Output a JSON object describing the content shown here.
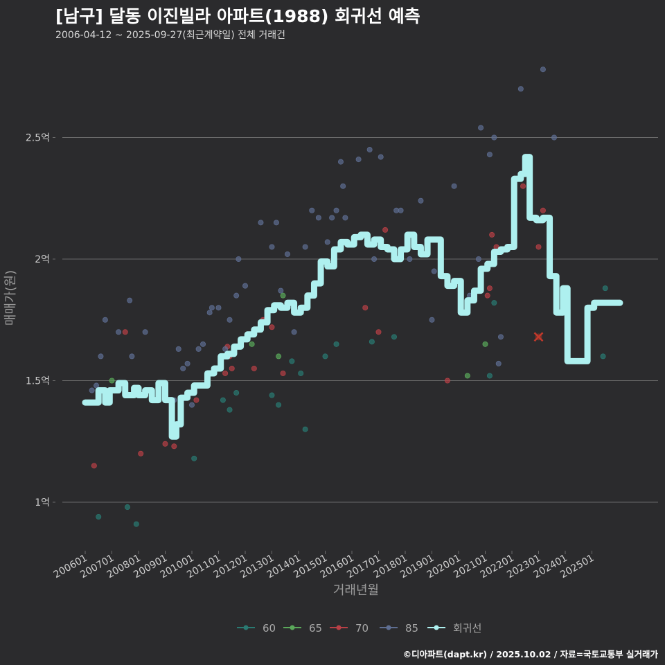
{
  "title": "[남구] 달동 이진빌라 아파트(1988) 회귀선 예측",
  "subtitle": "2006-04-12 ~ 2025-09-27(최근계약일) 전체 거래건",
  "credit": "©디아파트(dapt.kr) / 2025.10.02 / 자료=국토교통부 실거래가",
  "colors": {
    "background": "#2b2b2d",
    "grid": "#6a6a6a",
    "series_60": "#2a7a72",
    "series_65": "#5aa85a",
    "series_70": "#b84046",
    "series_85": "#5e6e92",
    "regression": "#aef0ef",
    "marker_x": "#c0392b"
  },
  "chart_data": {
    "type": "scatter",
    "xlabel": "거래년월",
    "ylabel": "매매가(원)",
    "ylim": [
      0.8,
      2.85
    ],
    "xlim": [
      "2006-01",
      "2026-01"
    ],
    "grid": "horizontal",
    "legend_position": "bottom",
    "y_ticks": [
      {
        "value": 1.0,
        "label": "1억"
      },
      {
        "value": 1.5,
        "label": "1.5억"
      },
      {
        "value": 2.0,
        "label": "2억"
      },
      {
        "value": 2.5,
        "label": "2.5억"
      }
    ],
    "x_ticks": [
      "200601",
      "200701",
      "200801",
      "200901",
      "201001",
      "201101",
      "201201",
      "201301",
      "201401",
      "201501",
      "201601",
      "201701",
      "201801",
      "201901",
      "202001",
      "202101",
      "202201",
      "202301",
      "202401",
      "202501"
    ],
    "legend": [
      "60",
      "65",
      "70",
      "85",
      "회귀선"
    ],
    "series": [
      {
        "name": "60",
        "color_key": "series_60",
        "points": [
          [
            "2006-07",
            0.94
          ],
          [
            "2007-08",
            0.98
          ],
          [
            "2007-12",
            0.91
          ],
          [
            "2010-02",
            1.18
          ],
          [
            "2011-03",
            1.42
          ],
          [
            "2011-06",
            1.38
          ],
          [
            "2011-09",
            1.45
          ],
          [
            "2013-01",
            1.44
          ],
          [
            "2013-04",
            1.4
          ],
          [
            "2013-10",
            1.58
          ],
          [
            "2014-02",
            1.53
          ],
          [
            "2014-04",
            1.3
          ],
          [
            "2015-01",
            1.6
          ],
          [
            "2015-06",
            1.65
          ],
          [
            "2016-10",
            1.66
          ],
          [
            "2017-08",
            1.68
          ],
          [
            "2021-03",
            1.52
          ],
          [
            "2021-05",
            1.82
          ],
          [
            "2025-06",
            1.6
          ],
          [
            "2025-07",
            1.88
          ]
        ]
      },
      {
        "name": "65",
        "color_key": "series_65",
        "points": [
          [
            "2007-01",
            1.5
          ],
          [
            "2012-04",
            1.65
          ],
          [
            "2013-04",
            1.6
          ],
          [
            "2013-06",
            1.85
          ],
          [
            "2020-05",
            1.52
          ],
          [
            "2021-01",
            1.65
          ]
        ]
      },
      {
        "name": "70",
        "color_key": "series_70",
        "points": [
          [
            "2006-05",
            1.15
          ],
          [
            "2007-07",
            1.7
          ],
          [
            "2008-02",
            1.2
          ],
          [
            "2009-01",
            1.24
          ],
          [
            "2009-05",
            1.23
          ],
          [
            "2010-03",
            1.42
          ],
          [
            "2011-02",
            1.55
          ],
          [
            "2011-04",
            1.53
          ],
          [
            "2011-05",
            1.64
          ],
          [
            "2011-06",
            1.6
          ],
          [
            "2011-07",
            1.55
          ],
          [
            "2012-05",
            1.55
          ],
          [
            "2012-09",
            1.75
          ],
          [
            "2013-01",
            1.72
          ],
          [
            "2013-06",
            1.53
          ],
          [
            "2016-07",
            1.8
          ],
          [
            "2017-01",
            1.7
          ],
          [
            "2017-04",
            2.12
          ],
          [
            "2019-08",
            1.5
          ],
          [
            "2021-02",
            1.85
          ],
          [
            "2021-03",
            1.88
          ],
          [
            "2021-04",
            2.1
          ],
          [
            "2021-06",
            2.05
          ],
          [
            "2022-06",
            2.3
          ],
          [
            "2023-01",
            2.05
          ],
          [
            "2023-03",
            2.2
          ]
        ]
      },
      {
        "name": "85",
        "color_key": "series_85",
        "points": [
          [
            "2006-04",
            1.46
          ],
          [
            "2006-06",
            1.48
          ],
          [
            "2006-08",
            1.6
          ],
          [
            "2006-10",
            1.75
          ],
          [
            "2007-04",
            1.7
          ],
          [
            "2007-09",
            1.83
          ],
          [
            "2007-10",
            1.6
          ],
          [
            "2008-04",
            1.7
          ],
          [
            "2009-05",
            1.42
          ],
          [
            "2009-07",
            1.63
          ],
          [
            "2009-09",
            1.55
          ],
          [
            "2009-11",
            1.57
          ],
          [
            "2010-01",
            1.4
          ],
          [
            "2010-04",
            1.63
          ],
          [
            "2010-06",
            1.65
          ],
          [
            "2010-09",
            1.78
          ],
          [
            "2010-10",
            1.8
          ],
          [
            "2011-01",
            1.8
          ],
          [
            "2011-04",
            1.63
          ],
          [
            "2011-06",
            1.75
          ],
          [
            "2011-09",
            1.85
          ],
          [
            "2011-10",
            2.0
          ],
          [
            "2012-01",
            1.89
          ],
          [
            "2012-08",
            2.15
          ],
          [
            "2013-01",
            2.05
          ],
          [
            "2013-03",
            2.15
          ],
          [
            "2013-05",
            1.87
          ],
          [
            "2013-08",
            2.02
          ],
          [
            "2013-11",
            1.7
          ],
          [
            "2014-04",
            2.05
          ],
          [
            "2014-07",
            2.2
          ],
          [
            "2014-10",
            2.17
          ],
          [
            "2015-02",
            2.07
          ],
          [
            "2015-04",
            2.17
          ],
          [
            "2015-06",
            2.2
          ],
          [
            "2015-08",
            2.4
          ],
          [
            "2015-09",
            2.3
          ],
          [
            "2015-10",
            2.17
          ],
          [
            "2016-04",
            2.41
          ],
          [
            "2016-09",
            2.45
          ],
          [
            "2016-11",
            2.0
          ],
          [
            "2017-02",
            2.42
          ],
          [
            "2017-09",
            2.2
          ],
          [
            "2017-11",
            2.2
          ],
          [
            "2018-03",
            2.0
          ],
          [
            "2018-08",
            2.24
          ],
          [
            "2019-01",
            1.75
          ],
          [
            "2019-02",
            1.95
          ],
          [
            "2019-05",
            2.05
          ],
          [
            "2019-11",
            2.3
          ],
          [
            "2020-06",
            1.85
          ],
          [
            "2020-10",
            2.0
          ],
          [
            "2020-11",
            2.54
          ],
          [
            "2021-03",
            2.43
          ],
          [
            "2021-05",
            2.5
          ],
          [
            "2021-07",
            1.57
          ],
          [
            "2021-08",
            1.68
          ],
          [
            "2022-05",
            2.7
          ],
          [
            "2023-03",
            2.78
          ],
          [
            "2023-08",
            2.5
          ]
        ]
      }
    ],
    "regression_line": {
      "name": "회귀선",
      "color_key": "regression",
      "points": [
        [
          "2006-01",
          1.41
        ],
        [
          "2006-05",
          1.41
        ],
        [
          "2006-07",
          1.46
        ],
        [
          "2006-10",
          1.41
        ],
        [
          "2006-12",
          1.46
        ],
        [
          "2007-04",
          1.49
        ],
        [
          "2007-07",
          1.44
        ],
        [
          "2007-11",
          1.47
        ],
        [
          "2008-01",
          1.44
        ],
        [
          "2008-04",
          1.46
        ],
        [
          "2008-07",
          1.42
        ],
        [
          "2008-10",
          1.49
        ],
        [
          "2009-01",
          1.42
        ],
        [
          "2009-04",
          1.27
        ],
        [
          "2009-06",
          1.32
        ],
        [
          "2009-08",
          1.43
        ],
        [
          "2009-11",
          1.45
        ],
        [
          "2010-02",
          1.48
        ],
        [
          "2010-05",
          1.48
        ],
        [
          "2010-08",
          1.53
        ],
        [
          "2010-11",
          1.55
        ],
        [
          "2011-02",
          1.6
        ],
        [
          "2011-05",
          1.61
        ],
        [
          "2011-08",
          1.64
        ],
        [
          "2011-11",
          1.67
        ],
        [
          "2012-02",
          1.69
        ],
        [
          "2012-05",
          1.71
        ],
        [
          "2012-08",
          1.74
        ],
        [
          "2012-11",
          1.79
        ],
        [
          "2013-02",
          1.81
        ],
        [
          "2013-05",
          1.8
        ],
        [
          "2013-08",
          1.82
        ],
        [
          "2013-11",
          1.78
        ],
        [
          "2014-02",
          1.8
        ],
        [
          "2014-05",
          1.85
        ],
        [
          "2014-08",
          1.9
        ],
        [
          "2014-11",
          1.99
        ],
        [
          "2015-02",
          1.97
        ],
        [
          "2015-05",
          2.04
        ],
        [
          "2015-08",
          2.07
        ],
        [
          "2015-11",
          2.06
        ],
        [
          "2016-02",
          2.09
        ],
        [
          "2016-05",
          2.1
        ],
        [
          "2016-08",
          2.06
        ],
        [
          "2016-11",
          2.08
        ],
        [
          "2017-02",
          2.05
        ],
        [
          "2017-05",
          2.04
        ],
        [
          "2017-08",
          2.0
        ],
        [
          "2017-11",
          2.04
        ],
        [
          "2018-02",
          2.1
        ],
        [
          "2018-05",
          2.05
        ],
        [
          "2018-08",
          2.02
        ],
        [
          "2018-11",
          2.08
        ],
        [
          "2019-02",
          2.08
        ],
        [
          "2019-05",
          1.93
        ],
        [
          "2019-08",
          1.89
        ],
        [
          "2019-11",
          1.91
        ],
        [
          "2020-02",
          1.78
        ],
        [
          "2020-05",
          1.83
        ],
        [
          "2020-08",
          1.87
        ],
        [
          "2020-11",
          1.96
        ],
        [
          "2021-02",
          1.98
        ],
        [
          "2021-05",
          2.03
        ],
        [
          "2021-08",
          2.04
        ],
        [
          "2021-11",
          2.05
        ],
        [
          "2022-02",
          2.33
        ],
        [
          "2022-05",
          2.35
        ],
        [
          "2022-07",
          2.42
        ],
        [
          "2022-09",
          2.17
        ],
        [
          "2022-12",
          2.16
        ],
        [
          "2023-03",
          2.17
        ],
        [
          "2023-06",
          1.93
        ],
        [
          "2023-09",
          1.78
        ],
        [
          "2023-12",
          1.88
        ],
        [
          "2024-02",
          1.58
        ],
        [
          "2024-05",
          1.58
        ],
        [
          "2024-08",
          1.58
        ],
        [
          "2024-11",
          1.8
        ],
        [
          "2025-02",
          1.82
        ],
        [
          "2025-05",
          1.82
        ],
        [
          "2025-08",
          1.82
        ]
      ]
    },
    "highlight_marker": {
      "x": "2023-01",
      "y": 1.68,
      "shape": "x",
      "color_key": "marker_x"
    }
  }
}
